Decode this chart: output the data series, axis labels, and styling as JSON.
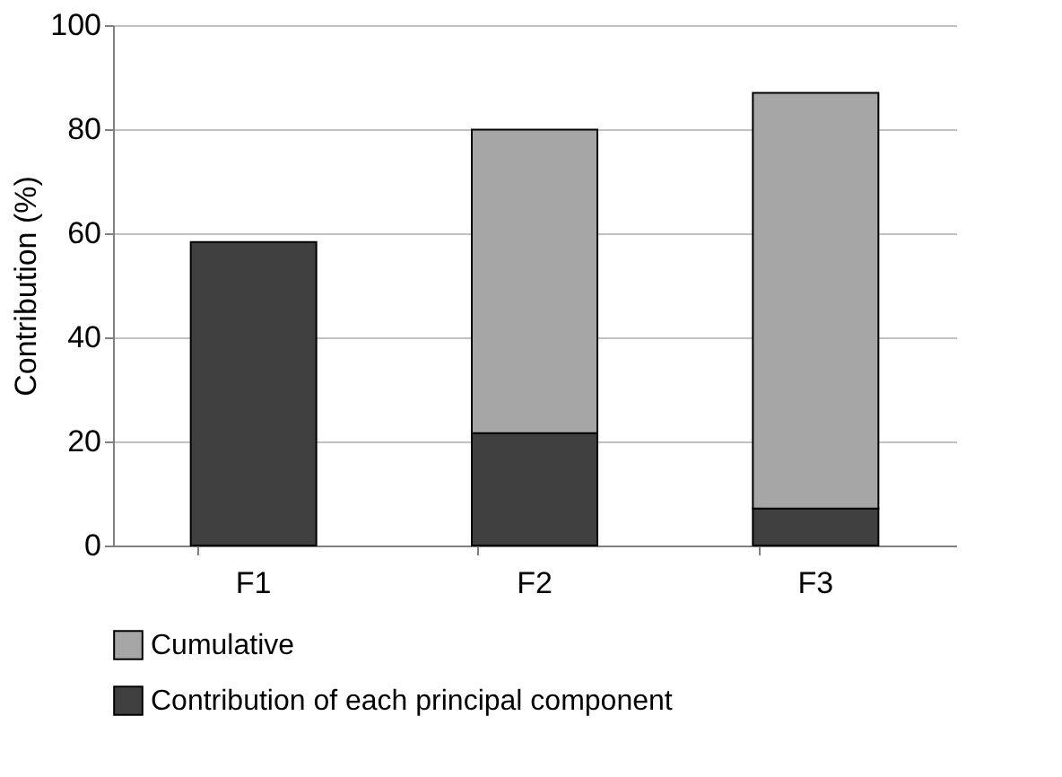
{
  "chart_data": {
    "type": "bar",
    "stacked": true,
    "ylabel": "Contribution (%)",
    "categories": [
      "F1",
      "F2",
      "F3"
    ],
    "series": [
      {
        "name": "Contribution of each principal component",
        "color": "#404040",
        "values": [
          58.3,
          21.6,
          7.1
        ]
      },
      {
        "name": "Cumulative",
        "color": "#a6a6a6",
        "values": [
          null,
          58.3,
          79.9
        ]
      }
    ],
    "ylim": [
      0,
      100
    ],
    "yticks": [
      0,
      20,
      40,
      60,
      80,
      100
    ],
    "grid": "y",
    "legend": "bottom"
  }
}
